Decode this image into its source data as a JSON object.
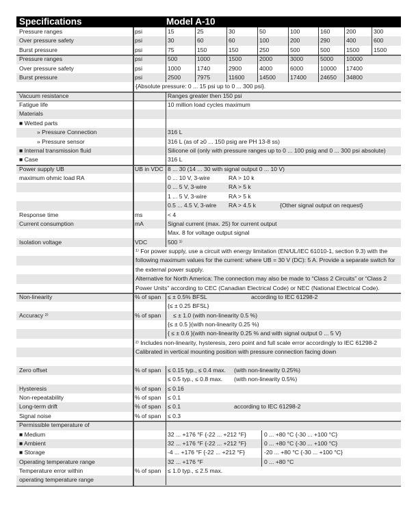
{
  "header": {
    "title": "Specifications",
    "model": "Model A-10"
  },
  "pressure_table": [
    {
      "label": "Pressure ranges",
      "unit": "psi",
      "values": [
        "15",
        "25",
        "30",
        "50",
        "100",
        "160",
        "200",
        "300"
      ]
    },
    {
      "label": "Over pressure safety",
      "unit": "psi",
      "values": [
        "30",
        "60",
        "60",
        "100",
        "200",
        "290",
        "400",
        "600"
      ]
    },
    {
      "label": "Burst pressure",
      "unit": "psi",
      "values": [
        "75",
        "150",
        "150",
        "250",
        "500",
        "500",
        "1500",
        "1500"
      ]
    },
    {
      "label": "Pressure ranges",
      "unit": "psi",
      "values": [
        "500",
        "1000",
        "1500",
        "2000",
        "3000",
        "5000",
        "10000",
        ""
      ]
    },
    {
      "label": "Over pressure safety",
      "unit": "psi",
      "values": [
        "1000",
        "1740",
        "2900",
        "4000",
        "6000",
        "10000",
        "17400",
        ""
      ]
    },
    {
      "label": "Burst pressure",
      "unit": "psi",
      "values": [
        "2500",
        "7975",
        "11600",
        "14500",
        "17400",
        "24650",
        "34800",
        ""
      ]
    }
  ],
  "rows": [
    {
      "type": "note",
      "label": "",
      "text": "{Absolute pressure: 0 ... 15 psi up to 0 ... 300 psi}."
    },
    {
      "type": "spec",
      "label": "Vacuum resistance",
      "unit": "",
      "cols": [
        "Ranges greater then 150 psi"
      ]
    },
    {
      "type": "spec",
      "label": "Fatigue life",
      "unit": "",
      "cols": [
        "10 million load cycles maximum"
      ]
    },
    {
      "type": "spec",
      "label": "Materials",
      "unit": "",
      "cols": []
    },
    {
      "type": "spec",
      "label": "■ Wetted parts",
      "unit": "",
      "cols": []
    },
    {
      "type": "spec",
      "indent": true,
      "label": "» Pressure Connection",
      "unit": "",
      "cols": [
        "316 L"
      ]
    },
    {
      "type": "spec",
      "indent": true,
      "label": "» Pressure sensor",
      "unit": "",
      "cols": [
        "316 L (as of ≥0 ... 150 psig are PH 13-8 ss)"
      ]
    },
    {
      "type": "spec",
      "label": "■ Internal transmission fluid",
      "unit": "",
      "cols": [
        "Silicone oil (only with pressure ranges up to 0 ... 100 psig and 0 ... 300 psi absolute)"
      ]
    },
    {
      "type": "spec",
      "label": "■ Case",
      "unit": "",
      "cols": [
        "316 L"
      ]
    },
    {
      "type": "spec",
      "label": "Power supply UB",
      "unit": "UB in VDC",
      "cols": [
        "8 ... 30 (14 ... 30 with signal output 0 ... 10 V)"
      ]
    },
    {
      "type": "load",
      "label": "maximum ohmic load RA",
      "unit": "",
      "cols": [
        "0 ... 10 V, 3-wire",
        "RA > 10 k"
      ]
    },
    {
      "type": "load",
      "label": "",
      "unit": "",
      "cols": [
        "0 ... 5 V, 3-wire",
        "RA > 5 k"
      ]
    },
    {
      "type": "load",
      "label": "",
      "unit": "",
      "cols": [
        "1 ... 5 V, 3-wire",
        "RA > 5 k"
      ]
    },
    {
      "type": "load",
      "label": "",
      "unit": "",
      "cols": [
        "0.5 ... 4.5 V, 3-wire",
        "RA > 4.5 k",
        "{Other signal output on request}"
      ]
    },
    {
      "type": "spec",
      "label": "Response time",
      "unit": "ms",
      "cols": [
        "< 4"
      ]
    },
    {
      "type": "spec",
      "label": "Current consumption",
      "unit": "mA",
      "cols": [
        "Signal current (max. 25) for current output"
      ]
    },
    {
      "type": "spec",
      "label": "",
      "unit": "",
      "cols": [
        "Max. 8 for voltage output signal"
      ]
    },
    {
      "type": "spec",
      "label": "Isolation voltage",
      "unit": "VDC",
      "cols": [
        "500 ¹⁾"
      ]
    },
    {
      "type": "note",
      "label": "",
      "text": "¹⁾ For power supply, use a circuit with energy limitation (EN/UL/IEC 61010-1, section 9.3) with the"
    },
    {
      "type": "note",
      "label": "",
      "text": "following maximum values for the current: where UB = 30 V (DC):  5 A. Provide a separate switch for"
    },
    {
      "type": "note",
      "label": "",
      "text": "the external power supply."
    },
    {
      "type": "note",
      "label": "",
      "text": "Alternative for North America: The connection may also be made to “Class 2 Circuits” or “Class 2"
    },
    {
      "type": "note",
      "label": "",
      "text": "Power Units” according to CEC (Canadian Electrical Code) or NEC (National Electrical Code)."
    },
    {
      "type": "remark-wide",
      "label": "Non-linearity",
      "unit": "% of span",
      "cols": [
        "≤ ± 0.5% BFSL",
        "according to IEC 61298-2"
      ]
    },
    {
      "type": "spec",
      "label": "",
      "unit": "",
      "cols": [
        "{≤ ± 0.25 BFSL}"
      ]
    },
    {
      "type": "spec",
      "label": "Accuracy ²⁾",
      "unit": "% of span",
      "cols": [
        "≤ ± 1.0 (with non-linearity 0.5 %)"
      ],
      "indent_value": true
    },
    {
      "type": "spec",
      "label": "",
      "unit": "",
      "cols": [
        "{≤ ± 0.5 }(with non-linearity 0.25 %)"
      ]
    },
    {
      "type": "spec",
      "label": "",
      "unit": "",
      "cols": [
        "{ ≤ ± 0.6 }(with non-linearity 0.25 % and with signal output 0 ... 5 V}"
      ]
    },
    {
      "type": "note",
      "label": "",
      "text": "²⁾ Includes non-linearity, hysteresis, zero point and full scale error accordingly to IEC 61298-2"
    },
    {
      "type": "note",
      "label": "",
      "text": "Calibrated in vertical mounting position with pressure connection facing down"
    },
    {
      "type": "blank",
      "label": "",
      "text": ""
    },
    {
      "type": "remark",
      "label": "Zero offset",
      "unit": "% of span",
      "cols": [
        "≤ 0.15 typ., ≤ 0.4 max.",
        "(with non-linearity 0.25%)"
      ]
    },
    {
      "type": "remark",
      "label": "",
      "unit": "",
      "cols": [
        "≤ 0.5 typ., ≤ 0.8 max.",
        "(with non-linearity 0.5%)"
      ]
    },
    {
      "type": "spec",
      "label": "Hysteresis",
      "unit": "% of span",
      "cols": [
        "≤ 0.16"
      ]
    },
    {
      "type": "spec",
      "label": "Non-repeatability",
      "unit": "% of span",
      "cols": [
        "≤ 0.1"
      ]
    },
    {
      "type": "remark",
      "label": "Long-term drift",
      "unit": "% of span",
      "cols": [
        "≤ 0.1",
        "according to IEC 61298-2"
      ]
    },
    {
      "type": "spec",
      "label": "Signal noise",
      "unit": "% of span",
      "cols": [
        "≤ 0.3"
      ]
    },
    {
      "type": "spec",
      "label": "Permissible temperature of",
      "unit": "",
      "cols": []
    },
    {
      "type": "temp",
      "label": "■ Medium",
      "unit": "",
      "cols": [
        "32 ... +176 °F {-22 ... +212 °F}",
        "0 ... +80 °C {-30 ... +100 °C}"
      ]
    },
    {
      "type": "temp",
      "label": "■ Ambient",
      "unit": "",
      "cols": [
        "32 ... +176 °F {-22 ... +212 °F}",
        "0 ... +80 °C {-30 ... +100 °C}"
      ]
    },
    {
      "type": "temp",
      "label": "■ Storage",
      "unit": "",
      "cols": [
        "-4 ... +176 °F {-22 ... +212 °F}",
        "-20 ... +80 °C {-30 ... +100 °C}"
      ]
    },
    {
      "type": "temp",
      "label": "Operating temperature range",
      "unit": "",
      "cols": [
        "32 ... +176 °F",
        "0 ... +80 °C"
      ]
    },
    {
      "type": "spec",
      "label": "Temperature error within",
      "unit": "% of span",
      "cols": [
        "≤ 1.0 typ., ≤ 2.5 max."
      ]
    },
    {
      "type": "spec",
      "label": "operating temperature range",
      "unit": "",
      "cols": []
    }
  ]
}
